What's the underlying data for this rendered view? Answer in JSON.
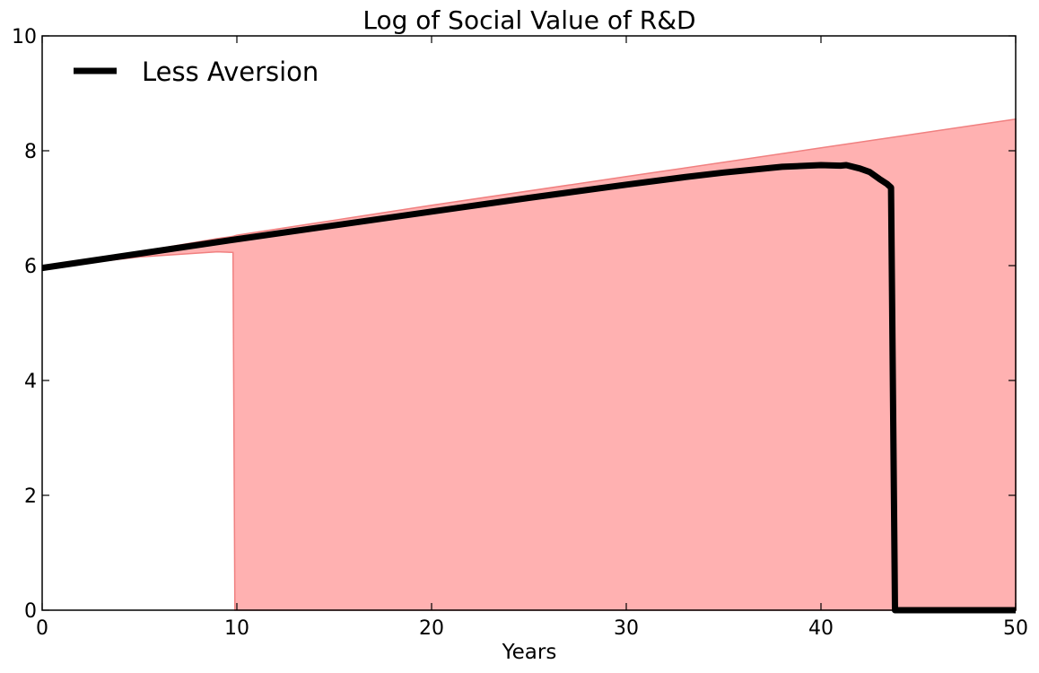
{
  "chart_data": {
    "type": "area",
    "title": "Log of Social Value of R&D",
    "xlabel": "Years",
    "ylabel": "",
    "xlim": [
      0,
      50
    ],
    "ylim": [
      0,
      10
    ],
    "x_ticks": [
      0,
      10,
      20,
      30,
      40,
      50
    ],
    "y_ticks": [
      0,
      2,
      4,
      6,
      8,
      10
    ],
    "grid": false,
    "legend_position": "top-left",
    "colors": {
      "line": "#000000",
      "band_fill": "#ffb1b1",
      "band_edge": "#f08080"
    },
    "band": {
      "x": [
        0,
        5,
        9,
        9.8,
        9.9,
        10,
        20,
        30,
        40,
        50
      ],
      "upper": [
        5.96,
        6.24,
        6.47,
        6.51,
        6.52,
        6.53,
        7.05,
        7.55,
        8.05,
        8.55
      ],
      "lower": [
        5.96,
        6.15,
        6.24,
        6.23,
        0,
        0,
        0,
        0,
        0,
        0
      ]
    },
    "series": [
      {
        "name": "Less Aversion",
        "x": [
          0,
          5,
          10,
          15,
          20,
          25,
          30,
          33,
          35,
          38,
          40,
          41,
          41.3,
          42,
          42.5,
          43,
          43.4,
          43.6,
          43.8,
          44,
          50
        ],
        "y": [
          5.96,
          6.21,
          6.46,
          6.7,
          6.94,
          7.18,
          7.41,
          7.54,
          7.62,
          7.72,
          7.75,
          7.74,
          7.75,
          7.69,
          7.63,
          7.51,
          7.42,
          7.36,
          0,
          0,
          0
        ]
      }
    ]
  }
}
